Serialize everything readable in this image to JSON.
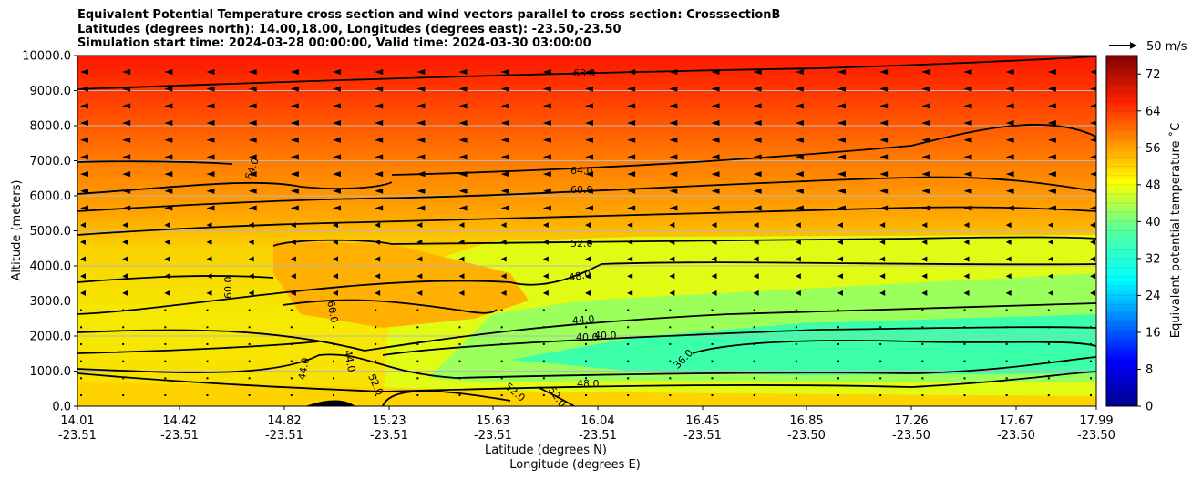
{
  "title_lines": [
    "Equivalent Potential Temperature cross section and wind vectors parallel to cross section: CrosssectionB",
    "Latitudes (degrees north): 14.00,18.00, Longitudes (degrees east): -23.50,-23.50",
    "Simulation start time: 2024-03-28 00:00:00, Valid time: 2024-03-30 03:00:00"
  ],
  "chart_data": {
    "type": "heatmap",
    "subtype": "filled contour cross section with contour lines and wind vectors",
    "ylabel": "Altitude (meters)",
    "xlabel_lat": "Latitude (degrees N)",
    "xlabel_lon": "Longitude (degrees E)",
    "ylim": [
      0,
      10000
    ],
    "y_ticks": [
      "0.0",
      "1000.0",
      "2000.0",
      "3000.0",
      "4000.0",
      "5000.0",
      "6000.0",
      "7000.0",
      "8000.0",
      "9000.0",
      "10000.0"
    ],
    "x_ticks_lat": [
      "14.01",
      "14.42",
      "14.82",
      "15.23",
      "15.63",
      "16.04",
      "16.45",
      "16.85",
      "17.26",
      "17.67",
      "17.99"
    ],
    "x_ticks_lon": [
      "-23.51",
      "-23.51",
      "-23.51",
      "-23.51",
      "-23.51",
      "-23.51",
      "-23.51",
      "-23.50",
      "-23.50",
      "-23.50",
      "-23.50"
    ],
    "grid": "horizontal gridlines at each altitude tick",
    "colorbar": {
      "label": "Equivalent potential temperature $^\\circ$C",
      "label_text": "Equivalent potential temperature ˚C",
      "range": [
        0,
        76
      ],
      "ticks": [
        "0",
        "8",
        "16",
        "24",
        "32",
        "40",
        "48",
        "56",
        "64",
        "72"
      ]
    },
    "contour_labels": [
      "68.0",
      "64.0",
      "64.0",
      "60.0",
      "60.0",
      "60.0",
      "52.0",
      "48.0",
      "44.0",
      "40.0",
      "40.0",
      "44.0",
      "52.0",
      "44.0",
      "36.0",
      "48.0",
      "52.0",
      "52.0"
    ],
    "quiver_key": {
      "label": "50 m/s",
      "position": "top-right"
    },
    "wind_direction": "mostly westward (toward lower latitude), strongest aloft"
  }
}
